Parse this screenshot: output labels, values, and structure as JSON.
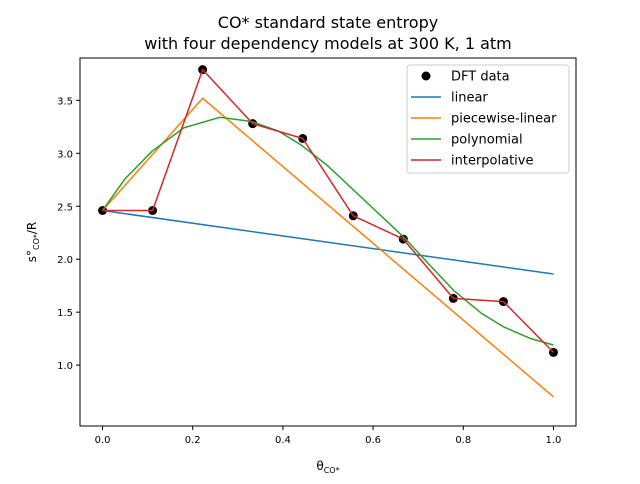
{
  "chart_data": {
    "type": "line",
    "title": "CO* standard state entropy",
    "subtitle": "with four dependency models at 300 K, 1 atm",
    "xlabel": "θ",
    "xlabel_sub": "CO*",
    "ylabel": "s°",
    "ylabel_sub": "CO*",
    "ylabel_suffix": "/R",
    "xlim": [
      -0.05,
      1.05
    ],
    "ylim": [
      0.425,
      3.9
    ],
    "xticks": [
      0.0,
      0.2,
      0.4,
      0.6,
      0.8,
      1.0
    ],
    "xtick_labels": [
      "0.0",
      "0.2",
      "0.4",
      "0.6",
      "0.8",
      "1.0"
    ],
    "yticks": [
      1.0,
      1.5,
      2.0,
      2.5,
      3.0,
      3.5
    ],
    "ytick_labels": [
      "1.0",
      "1.5",
      "2.0",
      "2.5",
      "3.0",
      "3.5"
    ],
    "grid": false,
    "legend_position": "top-right",
    "series": [
      {
        "name": "DFT data",
        "kind": "scatter",
        "color": "#000000",
        "x": [
          0.0,
          0.111,
          0.222,
          0.333,
          0.444,
          0.556,
          0.667,
          0.778,
          0.889,
          1.0
        ],
        "y": [
          2.46,
          2.46,
          3.79,
          3.28,
          3.14,
          2.41,
          2.19,
          1.63,
          1.6,
          1.12
        ]
      },
      {
        "name": "linear",
        "kind": "line",
        "color": "#1f77b4",
        "x": [
          0.0,
          1.0
        ],
        "y": [
          2.46,
          1.86
        ]
      },
      {
        "name": "piecewise-linear",
        "kind": "line",
        "color": "#ff7f0e",
        "x": [
          0.0,
          0.222,
          1.0
        ],
        "y": [
          2.46,
          3.52,
          0.7
        ]
      },
      {
        "name": "polynomial",
        "kind": "line",
        "color": "#2ca02c",
        "x": [
          0.0,
          0.05,
          0.11,
          0.18,
          0.26,
          0.33,
          0.39,
          0.44,
          0.5,
          0.56,
          0.62,
          0.67,
          0.72,
          0.78,
          0.84,
          0.89,
          0.95,
          1.0
        ],
        "y": [
          2.46,
          2.76,
          3.02,
          3.24,
          3.34,
          3.3,
          3.21,
          3.08,
          2.88,
          2.64,
          2.4,
          2.2,
          1.97,
          1.7,
          1.49,
          1.36,
          1.25,
          1.19
        ]
      },
      {
        "name": "interpolative",
        "kind": "line",
        "color": "#d62728",
        "x": [
          0.0,
          0.111,
          0.222,
          0.333,
          0.444,
          0.556,
          0.667,
          0.778,
          0.889,
          1.0
        ],
        "y": [
          2.46,
          2.46,
          3.79,
          3.28,
          3.14,
          2.41,
          2.19,
          1.63,
          1.6,
          1.12
        ]
      }
    ]
  }
}
